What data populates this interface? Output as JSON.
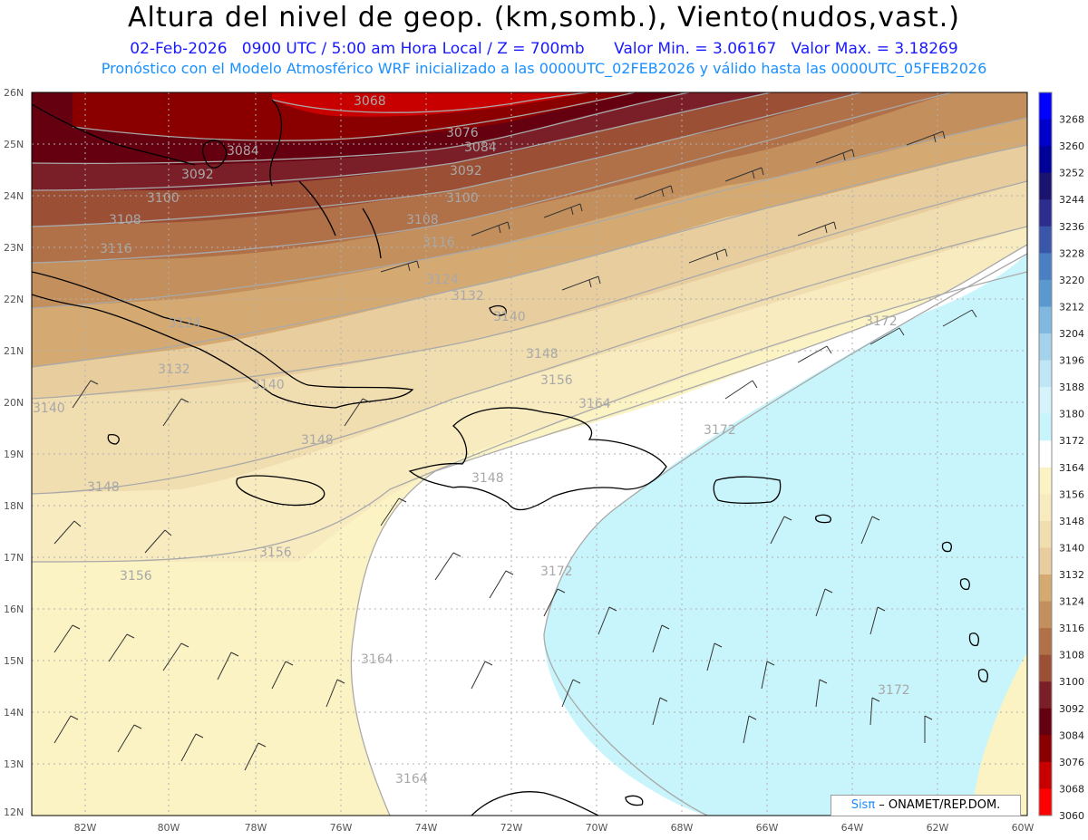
{
  "header": {
    "title": "Altura del nivel de geop. (km,somb.), Viento(nudos,vast.)",
    "date": "02-Feb-2026",
    "time": "0900 UTC / 5:00 am Hora Local / Z = 700mb",
    "min_value": "Valor Min. = 3.06167",
    "max_value": "Valor Max. = 3.18269",
    "forecast": "Pronóstico con el Modelo Atmosférico WRF inicializado a las 0000UTC_02FEB2026 y válido hasta las  0000UTC_05FEB2026"
  },
  "axes": {
    "lat_labels": [
      "26N",
      "25N",
      "24N",
      "23N",
      "22N",
      "21N",
      "20N",
      "19N",
      "18N",
      "17N",
      "16N",
      "15N",
      "14N",
      "13N",
      "12N"
    ],
    "lon_labels": [
      "82W",
      "80W",
      "78W",
      "76W",
      "74W",
      "72W",
      "70W",
      "68W",
      "66W",
      "64W",
      "62W",
      "60W"
    ]
  },
  "colorbar": {
    "labels": [
      "3268",
      "3260",
      "3252",
      "3244",
      "3236",
      "3228",
      "3220",
      "3212",
      "3204",
      "3196",
      "3188",
      "3180",
      "3172",
      "3164",
      "3156",
      "3148",
      "3140",
      "3132",
      "3124",
      "3116",
      "3108",
      "3100",
      "3092",
      "3084",
      "3076",
      "3068",
      "3060"
    ],
    "colors": [
      "#0000ff",
      "#0000cc",
      "#00009a",
      "#1a1470",
      "#2d2d8f",
      "#3a56aa",
      "#4a7fc4",
      "#5c98d0",
      "#80b8e0",
      "#a4d2ec",
      "#bfe6f4",
      "#d6f2fa",
      "#c8f5fb",
      "#ffffff",
      "#fbf3c4",
      "#f8ebc0",
      "#f0ddb0",
      "#e8cd9e",
      "#d5aa72",
      "#c38f5c",
      "#b07048",
      "#9b5036",
      "#7a1f28",
      "#650010",
      "#8a0000",
      "#c80000",
      "#ff0000"
    ]
  },
  "contour_labels": [
    "3068",
    "3076",
    "3084",
    "3084",
    "3092",
    "3092",
    "3100",
    "3100",
    "3108",
    "3108",
    "3116",
    "3116",
    "3124",
    "3124",
    "3132",
    "3132",
    "3140",
    "3140",
    "3140",
    "3148",
    "3148",
    "3148",
    "3156",
    "3156",
    "3156",
    "3164",
    "3164",
    "3164",
    "3172",
    "3172",
    "3172",
    "3172",
    "3148"
  ],
  "colors": {
    "title": "#000000",
    "subtitle": "#1a1aff",
    "forecast": "#1a90ff",
    "ocean_low": "#c8f5fb"
  },
  "credit": {
    "brand": "Sisπ",
    "text": " – ONAMET/REP.DOM."
  }
}
